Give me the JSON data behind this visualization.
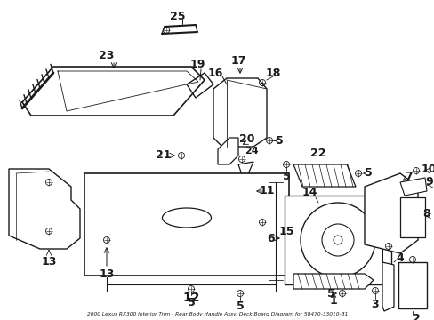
{
  "title": "2000 Lexus RX300 Interior Trim - Rear Body Handle Assy, Deck Board Diagram for 58470-33010-B1",
  "bg_color": "#ffffff",
  "line_color": "#1a1a1a",
  "fig_width": 4.89,
  "fig_height": 3.6,
  "dpi": 100
}
